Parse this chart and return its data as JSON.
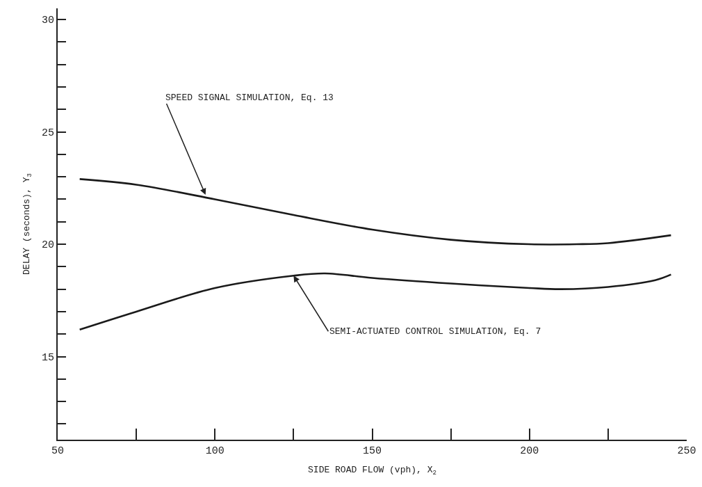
{
  "chart_data": {
    "type": "line",
    "xlabel": "SIDE ROAD FLOW (vph), X$_{2}$",
    "ylabel": "DELAY (seconds), Y$_{3}$",
    "series": [
      {
        "color": "#1a1a1a",
        "x": [
          57,
          75,
          100,
          125,
          150,
          175,
          200,
          215,
          225,
          245
        ],
        "values": [
          22.9,
          22.65,
          22.0,
          21.3,
          20.65,
          20.2,
          20.0,
          20.0,
          20.05,
          20.4
        ]
      },
      {
        "color": "#1a1a1a",
        "x": [
          57,
          75,
          100,
          125,
          135,
          150,
          175,
          200,
          210,
          225,
          240,
          245
        ],
        "values": [
          16.2,
          17.0,
          18.05,
          18.6,
          18.7,
          18.5,
          18.25,
          18.05,
          18.0,
          18.1,
          18.4,
          18.65
        ]
      }
    ],
    "xlim": [
      50,
      250
    ],
    "ylim": [
      11.3,
      30.5
    ],
    "xticks": [
      50,
      {
        "value": 75,
        "label": null
      },
      100,
      {
        "value": 125,
        "label": null
      },
      150,
      {
        "value": 175,
        "label": null
      },
      200,
      {
        "value": 225,
        "label": null
      },
      250
    ],
    "yticks": [
      {
        "value": 12,
        "label": null
      },
      {
        "value": 13,
        "label": null
      },
      {
        "value": 14,
        "label": null
      },
      15,
      {
        "value": 16,
        "label": null
      },
      {
        "value": 17,
        "label": null
      },
      {
        "value": 18,
        "label": null
      },
      {
        "value": 19,
        "label": null
      },
      20,
      {
        "value": 21,
        "label": null
      },
      {
        "value": 22,
        "label": null
      },
      {
        "value": 23,
        "label": null
      },
      {
        "value": 24,
        "label": null
      },
      25,
      {
        "value": 26,
        "label": null
      },
      {
        "value": 27,
        "label": null
      },
      {
        "value": 28,
        "label": null
      },
      {
        "value": 29,
        "label": null
      },
      30
    ],
    "annotations": [
      {
        "text": "SPEED SIGNAL SIMULATION, Eq. 13",
        "x": 97,
        "y": 22.2
      },
      {
        "text": "SEMI-ACTUATED CONTROL SIMULATION, Eq. 7",
        "x": 125,
        "y": 18.6
      }
    ],
    "grid": false,
    "marker": "none",
    "line_style": "solid"
  }
}
